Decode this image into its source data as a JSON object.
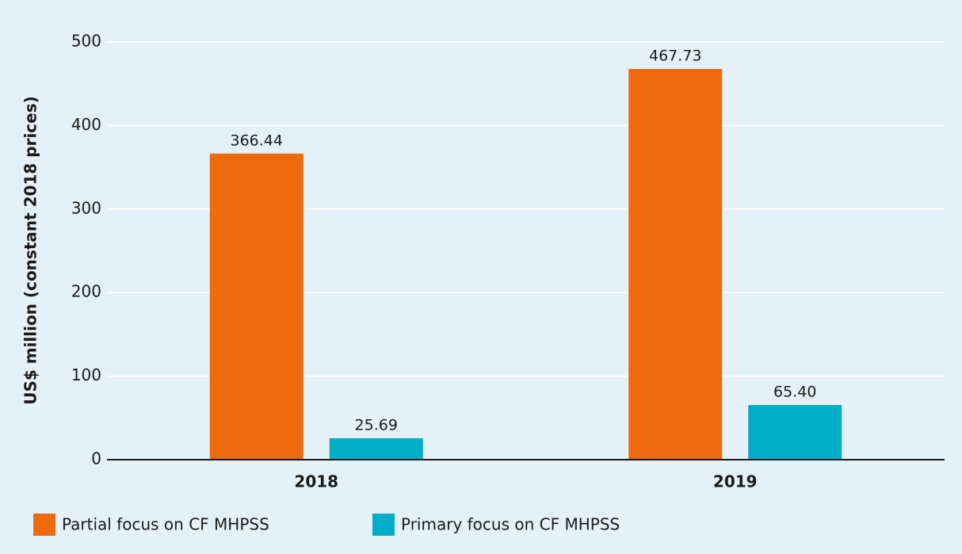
{
  "chart_data": {
    "type": "bar",
    "y_label": "US$ million (constant 2018 prices)",
    "categories": [
      "2018",
      "2019"
    ],
    "series": [
      {
        "name": "Partial focus on CF MHPSS",
        "color": "#ee6a0a",
        "values": [
          366.44,
          467.73
        ],
        "value_labels": [
          "366.44",
          "467.73"
        ]
      },
      {
        "name": "Primary focus on CF MHPSS",
        "color": "#00aec7",
        "values": [
          25.69,
          65.4
        ],
        "value_labels": [
          "25.69",
          "65.40"
        ]
      }
    ],
    "ylim": [
      0,
      500
    ],
    "yticks": [
      0,
      100,
      200,
      300,
      400,
      500
    ],
    "grid": true
  }
}
